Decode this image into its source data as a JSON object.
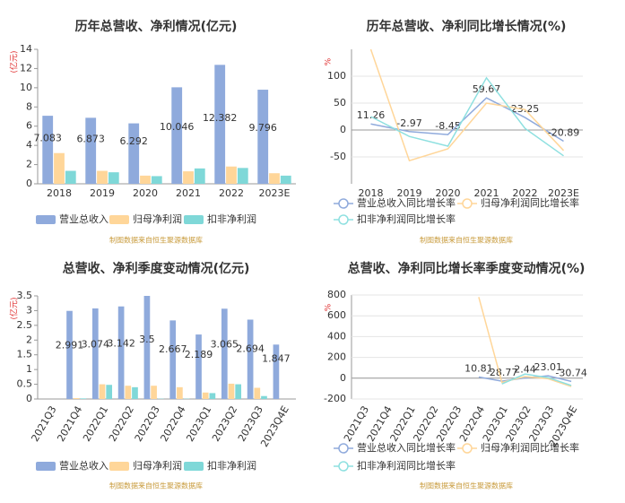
{
  "chart_data": [
    {
      "type": "bar",
      "title": "历年总营收、净利情况(亿元)",
      "y_unit_label": "(亿元)",
      "categories": [
        "2018",
        "2019",
        "2020",
        "2021",
        "2022",
        "2023E"
      ],
      "series": [
        {
          "name": "营业总收入",
          "color": "#8faadc",
          "data_labels": true,
          "values": [
            7.083,
            6.873,
            6.292,
            10.046,
            12.382,
            9.796
          ]
        },
        {
          "name": "归母净利润",
          "color": "#ffd699",
          "values": [
            3.2,
            1.35,
            0.85,
            1.3,
            1.8,
            1.1
          ]
        },
        {
          "name": "扣非净利润",
          "color": "#7fd8d8",
          "values": [
            1.35,
            1.2,
            0.8,
            1.6,
            1.65,
            0.85
          ]
        }
      ],
      "ylim": [
        0,
        14
      ],
      "yticks": [
        0,
        2,
        4,
        6,
        8,
        10,
        12,
        14
      ],
      "grid": false,
      "source": "制图数据来自恒生聚源数据库"
    },
    {
      "type": "line",
      "title": "历年总营收、净利同比增长情况(%)",
      "y_unit_label": "%",
      "categories": [
        "2018",
        "2019",
        "2020",
        "2021",
        "2022",
        "2023E"
      ],
      "series": [
        {
          "name": "营业总收入同比增长率",
          "color": "#8faadc",
          "data_labels": true,
          "values": [
            11.26,
            -2.97,
            -8.45,
            59.67,
            23.25,
            -20.89
          ]
        },
        {
          "name": "归母净利润同比增长率",
          "color": "#ffd699",
          "values": [
            150,
            -57,
            -35,
            50,
            38,
            -38
          ]
        },
        {
          "name": "扣非净利润同比增长率",
          "color": "#8ee0e0",
          "values": [
            25,
            -12,
            -30,
            97,
            3,
            -48
          ]
        }
      ],
      "ylim": [
        -100,
        150
      ],
      "yticks": [
        -50,
        0,
        50,
        100
      ],
      "grid": true,
      "source": "制图数据来自恒生聚源数据库"
    },
    {
      "type": "bar",
      "title": "总营收、净利季度变动情况(亿元)",
      "y_unit_label": "(亿元)",
      "categories": [
        "2021Q3",
        "2021Q4",
        "2022Q1",
        "2022Q2",
        "2022Q3",
        "2022Q4",
        "2023Q1",
        "2023Q2",
        "2023Q3",
        "2023Q4E"
      ],
      "series": [
        {
          "name": "营业总收入",
          "color": "#8faadc",
          "data_labels": true,
          "values": [
            null,
            2.991,
            3.074,
            3.142,
            3.5,
            2.667,
            2.189,
            3.065,
            2.694,
            1.847
          ]
        },
        {
          "name": "归母净利润",
          "color": "#ffd699",
          "values": [
            null,
            0.03,
            0.5,
            0.45,
            0.45,
            0.4,
            0.22,
            0.52,
            0.38,
            null
          ]
        },
        {
          "name": "扣非净利润",
          "color": "#7fd8d8",
          "values": [
            null,
            0.02,
            0.48,
            0.4,
            0.01,
            0.01,
            0.2,
            0.5,
            0.1,
            null
          ]
        }
      ],
      "ylim": [
        0,
        3.5
      ],
      "yticks": [
        0,
        0.5,
        1,
        1.5,
        2,
        2.5,
        3,
        3.5
      ],
      "grid": false,
      "source": "制图数据来自恒生聚源数据库"
    },
    {
      "type": "line",
      "title": "总营收、净利同比增长率季度变动情况(%)",
      "y_unit_label": "%",
      "categories": [
        "2021Q3",
        "2021Q4",
        "2022Q1",
        "2022Q2",
        "2022Q3",
        "2022Q4",
        "2023Q1",
        "2023Q2",
        "2023Q3",
        "2023Q4E"
      ],
      "series": [
        {
          "name": "营业总收入同比增长率",
          "color": "#8faadc",
          "data_labels": true,
          "values": [
            null,
            null,
            null,
            null,
            null,
            10.81,
            -28.77,
            2.44,
            23.01,
            -30.74
          ]
        },
        {
          "name": "归母净利润同比增长率",
          "color": "#ffd699",
          "values": [
            null,
            null,
            null,
            null,
            null,
            780,
            -40,
            15,
            -5,
            -80
          ]
        },
        {
          "name": "扣非净利润同比增长率",
          "color": "#8ee0e0",
          "values": [
            null,
            null,
            null,
            null,
            null,
            null,
            -55,
            40,
            5,
            -70
          ]
        }
      ],
      "ylim": [
        -200,
        800
      ],
      "yticks": [
        -200,
        0,
        200,
        400,
        600,
        800
      ],
      "grid": true,
      "source": "制图数据来自恒生聚源数据库"
    }
  ]
}
